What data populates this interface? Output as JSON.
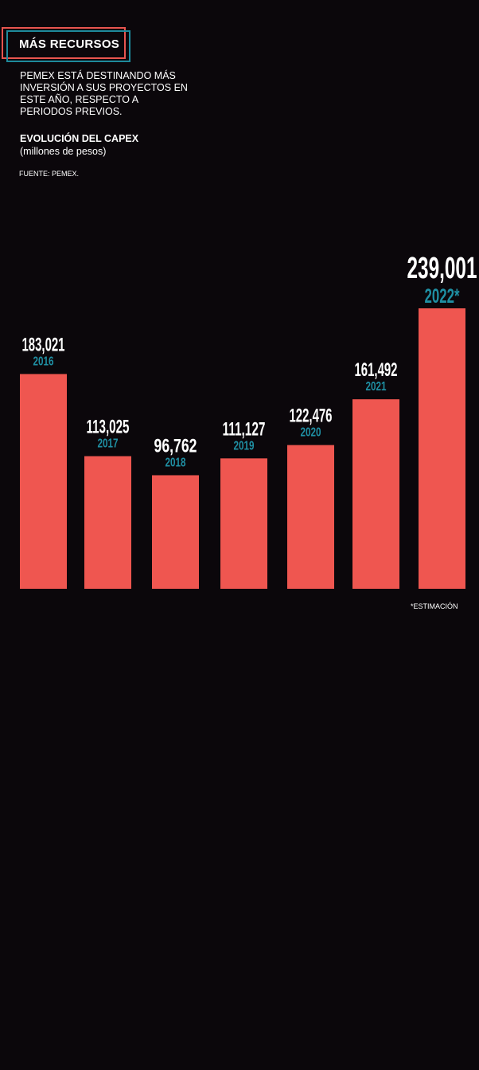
{
  "header": {
    "title": "MÁS RECURSOS",
    "subtitle": "PEMEX ESTÁ DESTINANDO MÁS INVERSIÓN A SUS PROYECTOS EN ESTE AÑO, RESPECTO A PERIODOS PREVIOS.",
    "chart_label": "EVOLUCIÓN DEL CAPEX",
    "unit": "(millones de pesos)",
    "source": "FUENTE: PEMEX.",
    "note": "*ESTIMACIÓN"
  },
  "colors": {
    "background": "#0b070b",
    "bar": "#ef5650",
    "year": "#1f8fa3",
    "value": "#ffffff",
    "title_border_outer": "#e8554f",
    "title_border_inner": "#1e8a9c"
  },
  "chart_data": {
    "type": "bar",
    "title": "EVOLUCIÓN DEL CAPEX",
    "ylabel": "(millones de pesos)",
    "categories": [
      "2016",
      "2017",
      "2018",
      "2019",
      "2020",
      "2021",
      "2022*"
    ],
    "values": [
      183021,
      113025,
      96762,
      111127,
      122476,
      161492,
      239001
    ],
    "value_labels": [
      "183,021",
      "113,025",
      "96,762",
      "111,127",
      "122,476",
      "161,492",
      "239,001"
    ],
    "ylim": [
      0,
      239001
    ],
    "grid": false,
    "highlight_last": true
  }
}
